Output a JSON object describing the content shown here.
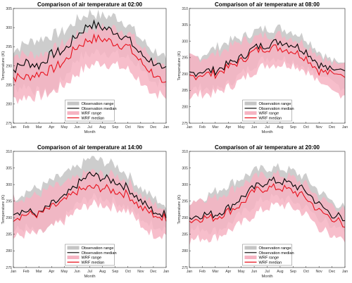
{
  "chart_data": [
    {
      "type": "line",
      "title": "Comparison of air temperature at 02:00",
      "xlabel": "Month",
      "ylabel": "Temperature (K)",
      "ylim": [
        275,
        305
      ],
      "yticks": [
        "275",
        "280",
        "285",
        "290",
        "295",
        "300",
        "305"
      ],
      "grid": false,
      "legend_position": "bottom-center",
      "categories": [
        "Jan",
        "Feb",
        "Mar",
        "Apr",
        "May",
        "Jun",
        "Jul",
        "Aug",
        "Sep",
        "Oct",
        "Nov",
        "Dec",
        "Jan"
      ],
      "series": [
        {
          "name": "Observation range",
          "color": "#c4c4c4",
          "lower": [
            284,
            285,
            283,
            283,
            287,
            292,
            293,
            294,
            293,
            292,
            290,
            286,
            285
          ],
          "upper": [
            294,
            296,
            297,
            298,
            299,
            302,
            304,
            303,
            303,
            301,
            297,
            294,
            293
          ]
        },
        {
          "name": "Observation median",
          "color": "#000000",
          "values": [
            289,
            291,
            290,
            293,
            294,
            298,
            301,
            300,
            299,
            297,
            293,
            291,
            290
          ]
        },
        {
          "name": "WRF range",
          "color": "#f6b3c2",
          "lower": [
            281,
            282,
            282,
            283,
            285,
            288,
            290,
            291,
            290,
            289,
            286,
            283,
            282
          ],
          "upper": [
            293,
            293,
            293,
            294,
            296,
            298,
            300,
            300,
            300,
            299,
            295,
            292,
            290
          ]
        },
        {
          "name": "WRF median",
          "color": "#e8111c",
          "values": [
            287,
            287,
            288,
            289,
            291,
            295,
            297,
            297,
            296,
            295,
            291,
            288,
            286
          ]
        }
      ]
    },
    {
      "type": "line",
      "title": "Comparison of air temperature at 08:00",
      "xlabel": "Month",
      "ylabel": "Temperature (K)",
      "ylim": [
        275,
        310
      ],
      "yticks": [
        "275",
        "280",
        "285",
        "290",
        "295",
        "300",
        "305",
        "310"
      ],
      "grid": false,
      "legend_position": "bottom-center",
      "categories": [
        "Jan",
        "Feb",
        "Mar",
        "Apr",
        "May",
        "Jun",
        "Jul",
        "Aug",
        "Sep",
        "Oct",
        "Nov",
        "Dec",
        "Jan"
      ],
      "series": [
        {
          "name": "Observation range",
          "color": "#c4c4c4",
          "lower": [
            285,
            286,
            285,
            287,
            290,
            293,
            295,
            295,
            294,
            292,
            289,
            287,
            286
          ],
          "upper": [
            294,
            296,
            298,
            300,
            301,
            303,
            304,
            304,
            303,
            301,
            297,
            294,
            292
          ]
        },
        {
          "name": "Observation median",
          "color": "#000000",
          "values": [
            290,
            291,
            291,
            293,
            295,
            298,
            299,
            300,
            299,
            297,
            293,
            291,
            290
          ]
        },
        {
          "name": "WRF range",
          "color": "#f6b3c2",
          "lower": [
            283,
            284,
            284,
            286,
            288,
            291,
            293,
            293,
            293,
            291,
            287,
            284,
            284
          ],
          "upper": [
            295,
            295,
            296,
            298,
            300,
            301,
            302,
            302,
            301,
            299,
            296,
            293,
            292
          ]
        },
        {
          "name": "WRF median",
          "color": "#e8111c",
          "values": [
            289,
            290,
            290,
            292,
            294,
            297,
            298,
            298,
            297,
            295,
            291,
            290,
            288
          ]
        }
      ]
    },
    {
      "type": "line",
      "title": "Comparison of air temperature at 14:00",
      "xlabel": "Month",
      "ylabel": "Temperature (K)",
      "ylim": [
        275,
        310
      ],
      "yticks": [
        "275",
        "280",
        "285",
        "290",
        "295",
        "300",
        "305",
        "310"
      ],
      "grid": false,
      "legend_position": "bottom-center",
      "categories": [
        "Jan",
        "Feb",
        "Mar",
        "Apr",
        "May",
        "Jun",
        "Jul",
        "Aug",
        "Sep",
        "Oct",
        "Nov",
        "Dec",
        "Jan"
      ],
      "series": [
        {
          "name": "Observation range",
          "color": "#c4c4c4",
          "lower": [
            286,
            287,
            285,
            287,
            290,
            294,
            296,
            296,
            295,
            293,
            290,
            288,
            287
          ],
          "upper": [
            296,
            298,
            299,
            301,
            303,
            305,
            308,
            307,
            306,
            303,
            299,
            296,
            294
          ]
        },
        {
          "name": "Observation median",
          "color": "#000000",
          "values": [
            292,
            292,
            291,
            294,
            296,
            300,
            303,
            302,
            301,
            299,
            295,
            292,
            291
          ]
        },
        {
          "name": "WRF range",
          "color": "#f6b3c2",
          "lower": [
            284,
            285,
            285,
            287,
            289,
            292,
            294,
            294,
            293,
            292,
            288,
            285,
            285
          ],
          "upper": [
            296,
            296,
            297,
            299,
            300,
            302,
            304,
            303,
            303,
            301,
            297,
            294,
            293
          ]
        },
        {
          "name": "WRF median",
          "color": "#e8111c",
          "values": [
            290,
            291,
            291,
            293,
            295,
            298,
            299,
            299,
            298,
            297,
            293,
            291,
            290
          ]
        }
      ]
    },
    {
      "type": "line",
      "title": "Comparison of air temperature at 20:00",
      "xlabel": "Month",
      "ylabel": "Temperature (K)",
      "ylim": [
        275,
        310
      ],
      "yticks": [
        "275",
        "280",
        "285",
        "290",
        "295",
        "300",
        "305",
        "310"
      ],
      "grid": false,
      "legend_position": "bottom-center",
      "categories": [
        "Jan",
        "Feb",
        "Mar",
        "Apr",
        "May",
        "Jun",
        "Jul",
        "Aug",
        "Sep",
        "Oct",
        "Nov",
        "Dec",
        "Jan"
      ],
      "series": [
        {
          "name": "Observation range",
          "color": "#c4c4c4",
          "lower": [
            286,
            287,
            286,
            288,
            291,
            294,
            296,
            296,
            295,
            293,
            290,
            288,
            287
          ],
          "upper": [
            295,
            296,
            298,
            300,
            302,
            304,
            305,
            305,
            304,
            302,
            298,
            295,
            293
          ]
        },
        {
          "name": "Observation median",
          "color": "#000000",
          "values": [
            290,
            291,
            291,
            293,
            296,
            299,
            301,
            301,
            300,
            298,
            294,
            291,
            290
          ]
        },
        {
          "name": "WRF range",
          "color": "#f6b3c2",
          "lower": [
            283,
            284,
            284,
            286,
            288,
            291,
            293,
            294,
            293,
            291,
            287,
            285,
            284
          ],
          "upper": [
            295,
            296,
            296,
            298,
            300,
            302,
            303,
            303,
            302,
            300,
            296,
            294,
            292
          ]
        },
        {
          "name": "WRF median",
          "color": "#e8111c",
          "values": [
            289,
            290,
            290,
            292,
            294,
            298,
            299,
            299,
            298,
            296,
            292,
            290,
            288
          ]
        }
      ]
    }
  ]
}
